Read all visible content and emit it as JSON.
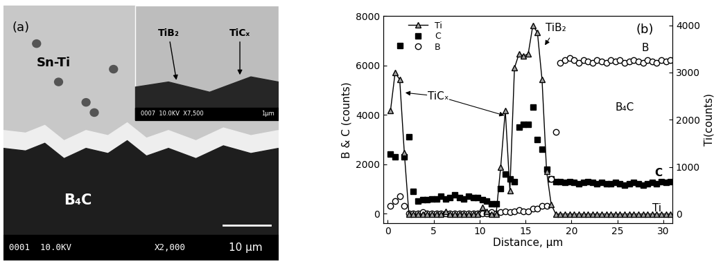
{
  "micrograph": {
    "panel_label": "(a)",
    "region_labels": [
      "Sn-Ti",
      "B₄C"
    ],
    "inset_labels": [
      "TiB₂",
      "TiCₓ"
    ],
    "info_bar": "0001  10.0KV",
    "magnification": "X2,000",
    "scale_bar": "10 µm",
    "inset_info_bar": "0007  10.0KV  X7,500",
    "inset_scale_bar": "1µm"
  },
  "chart_data": {
    "type": "line",
    "panel_label": "(b)",
    "x_label": "Distance, µm",
    "y_label": "B & C (counts)",
    "y2_label": "Ti(counts)",
    "xlim": [
      -0.5,
      31
    ],
    "xticks": [
      0,
      5,
      10,
      15,
      20,
      25,
      30
    ],
    "ylim": [
      -400,
      8000
    ],
    "yticks": [
      0,
      2000,
      4000,
      6000,
      8000
    ],
    "y2lim": [
      -200,
      4200
    ],
    "y2ticks": [
      0,
      1000,
      2000,
      3000,
      4000
    ],
    "legend": "upper left",
    "x": [
      0.3,
      0.8,
      1.3,
      1.8,
      2.3,
      2.8,
      3.3,
      3.8,
      4.3,
      4.8,
      5.3,
      5.8,
      6.3,
      6.8,
      7.3,
      7.8,
      8.3,
      8.8,
      9.3,
      9.8,
      10.3,
      10.8,
      11.3,
      11.8,
      12.3,
      12.8,
      13.3,
      13.8,
      14.3,
      14.8,
      15.3,
      15.8,
      16.3,
      16.8,
      17.3,
      17.8,
      18.3,
      18.8,
      19.3,
      19.8,
      20.3,
      20.8,
      21.3,
      21.8,
      22.3,
      22.8,
      23.3,
      23.8,
      24.3,
      24.8,
      25.3,
      25.8,
      26.3,
      26.8,
      27.3,
      27.8,
      28.3,
      28.8,
      29.3,
      29.8,
      30.3,
      30.8
    ],
    "series": [
      {
        "name": "Ti",
        "axis": "y2",
        "color": "#a0a0a0",
        "marker": "triangle",
        "line_style": "solid",
        "values": [
          2200,
          3000,
          2850,
          1300,
          0,
          0,
          0,
          0,
          0,
          0,
          0,
          0,
          50,
          0,
          0,
          0,
          0,
          0,
          0,
          0,
          150,
          50,
          0,
          0,
          1000,
          2200,
          500,
          3100,
          3400,
          3350,
          3400,
          4000,
          3850,
          2850,
          900,
          200,
          0,
          0,
          0,
          0,
          0,
          0,
          0,
          0,
          0,
          0,
          0,
          0,
          0,
          0,
          0,
          0,
          0,
          0,
          0,
          0,
          0,
          0,
          0,
          0,
          0,
          0
        ]
      },
      {
        "name": "C",
        "color": "#000000",
        "marker": "square",
        "line_style": "none",
        "values": [
          2400,
          2300,
          6800,
          2300,
          3100,
          900,
          500,
          550,
          550,
          600,
          600,
          700,
          600,
          650,
          750,
          650,
          600,
          700,
          650,
          650,
          550,
          500,
          400,
          400,
          1000,
          1600,
          1400,
          1300,
          3500,
          3600,
          3600,
          4300,
          3000,
          2600,
          1800,
          1400,
          1300,
          1300,
          1250,
          1300,
          1250,
          1200,
          1250,
          1300,
          1250,
          1200,
          1250,
          1200,
          1200,
          1250,
          1200,
          1150,
          1200,
          1250,
          1200,
          1150,
          1200,
          1250,
          1200,
          1300,
          1250,
          1300
        ]
      },
      {
        "name": "B",
        "color": "#ffffff",
        "marker": "circle",
        "line_style": "none",
        "values": [
          300,
          500,
          700,
          300,
          0,
          0,
          0,
          50,
          0,
          0,
          0,
          0,
          0,
          0,
          0,
          0,
          0,
          0,
          0,
          0,
          0,
          0,
          50,
          0,
          50,
          100,
          50,
          100,
          150,
          100,
          100,
          200,
          200,
          300,
          300,
          1400,
          3300,
          6100,
          6200,
          6300,
          6200,
          6100,
          6200,
          6150,
          6100,
          6200,
          6150,
          6100,
          6200,
          6150,
          6200,
          6100,
          6150,
          6200,
          6150,
          6100,
          6200,
          6150,
          6100,
          6200,
          6150,
          6200
        ]
      }
    ],
    "annotations": [
      {
        "text": "TiCₓ",
        "x": 5.5,
        "y": 4750,
        "arrows_to": [
          [
            1.7,
            4900
          ],
          [
            12.9,
            3950
          ]
        ]
      },
      {
        "text": "TiB₂",
        "x": 18.3,
        "y": 7500,
        "arrows_to": [
          [
            17.0,
            6750
          ]
        ]
      },
      {
        "text": "B",
        "x": 28.0,
        "y": 6700
      },
      {
        "text": "B₄C",
        "x": 25.8,
        "y": 4300
      },
      {
        "text": "C",
        "x": 29.5,
        "y": 1650
      },
      {
        "text": "Ti",
        "x": 29.3,
        "y": 200
      }
    ]
  }
}
